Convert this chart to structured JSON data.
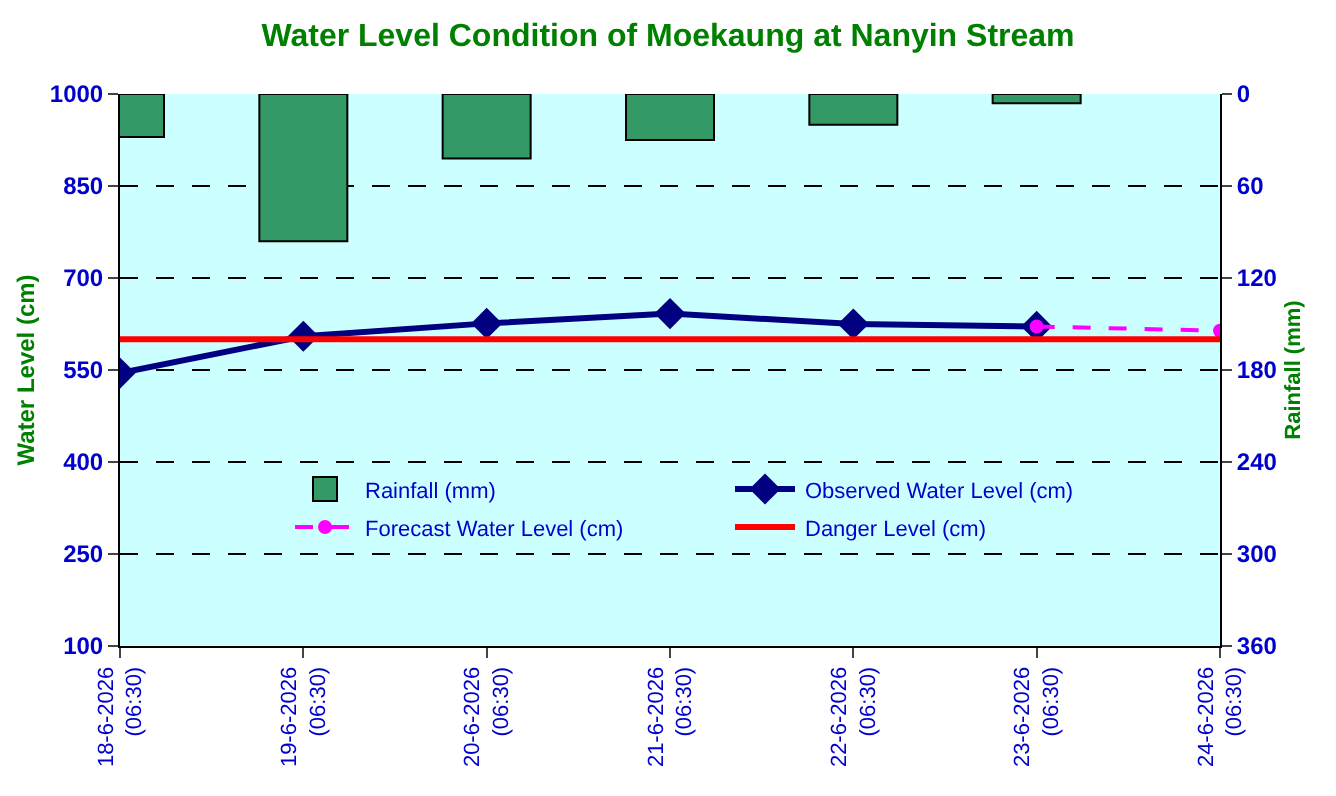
{
  "chart_data": {
    "type": "line",
    "title": "Water Level Condition of Moekaung at Nanyin Stream",
    "ylabel": "Water Level (cm)",
    "y2label": "Rainfall (mm)",
    "categories": [
      "18-6-2026\n(06:30)",
      "19-6-2026\n(06:30)",
      "20-6-2026\n(06:30)",
      "21-6-2026\n(06:30)",
      "22-6-2026\n(06:30)",
      "23-6-2026\n(06:30)",
      "24-6-2026\n(06:30)"
    ],
    "series": [
      {
        "name": "Rainfall (mm)",
        "type": "bar",
        "axis": "y2",
        "color": "#339966",
        "values": [
          28,
          96,
          42,
          30,
          20,
          6,
          null
        ]
      },
      {
        "name": "Observed Water Level (cm)",
        "color": "#000080",
        "marker": "diamond",
        "line_style": "solid",
        "values": [
          545,
          605,
          626,
          642,
          625,
          621,
          null
        ]
      },
      {
        "name": "Forecast Water Level (cm)",
        "color": "#ff00ff",
        "marker": "circle",
        "line_style": "dashed",
        "values": [
          null,
          null,
          null,
          null,
          null,
          621,
          614
        ]
      }
    ],
    "ref_lines": [
      {
        "axis": "y",
        "value": 600,
        "label": "Danger Level (cm)",
        "color": "#ff0000"
      }
    ],
    "ylim": [
      100,
      1000
    ],
    "yticks": [
      100,
      250,
      400,
      550,
      700,
      850,
      1000
    ],
    "y2lim": [
      360,
      0
    ],
    "y2ticks": [
      0,
      60,
      120,
      180,
      240,
      300,
      360
    ],
    "grid": "y",
    "legend": "bottom"
  }
}
